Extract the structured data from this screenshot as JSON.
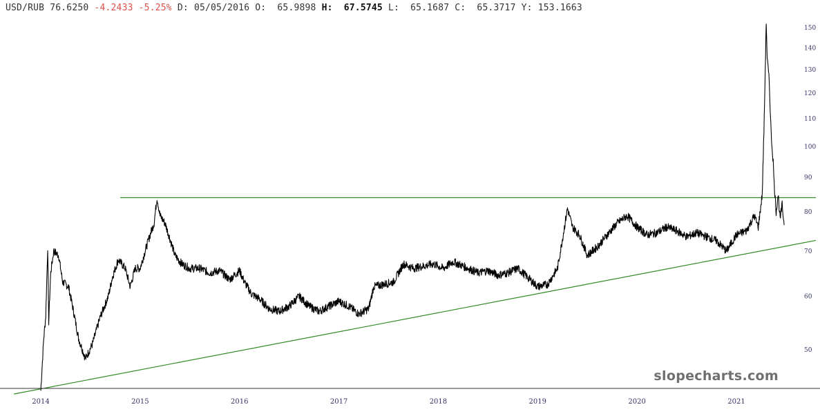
{
  "header": {
    "symbol": "USD/RUB",
    "last": "76.6250",
    "change": "-4.2433",
    "change_pct": "-5.25%",
    "date_label": "D:",
    "date": "05/05/2016",
    "open_label": "O:",
    "open": "65.9898",
    "high_label": "H:",
    "high": "67.5745",
    "low_label": "L:",
    "low": "65.1687",
    "close_label": "C:",
    "close": "65.3717",
    "y_label": "Y:",
    "y_value": "153.1663"
  },
  "watermark": "slopecharts.com",
  "colors": {
    "price": "#000000",
    "trendline": "#2f8a22",
    "negative": "#e0504a",
    "axis_text": "#333366",
    "watermark": "#6f6f6f"
  },
  "chart_data": {
    "type": "line",
    "scale": "log",
    "ylim": [
      43,
      153
    ],
    "xlim": [
      2013.9,
      2021.8
    ],
    "y_ticks": [
      50,
      60,
      70,
      80,
      90,
      100,
      110,
      120,
      130,
      140,
      150
    ],
    "x_ticks": [
      {
        "label": "2014",
        "x": 2014.0
      },
      {
        "label": "2015",
        "x": 2015.0
      },
      {
        "label": "2016",
        "x": 2016.0
      },
      {
        "label": "2017",
        "x": 2017.0
      },
      {
        "label": "2018",
        "x": 2018.0
      },
      {
        "label": "2019",
        "x": 2019.0
      },
      {
        "label": "2020",
        "x": 2020.0
      },
      {
        "label": "2021",
        "x": 2021.0
      }
    ],
    "series": [
      {
        "points": [
          [
            2014.0,
            43.5
          ],
          [
            2014.03,
            52
          ],
          [
            2014.05,
            56
          ],
          [
            2014.07,
            71
          ],
          [
            2014.08,
            55
          ],
          [
            2014.1,
            65
          ],
          [
            2014.13,
            70
          ],
          [
            2014.18,
            69
          ],
          [
            2014.22,
            63
          ],
          [
            2014.28,
            62
          ],
          [
            2014.33,
            57
          ],
          [
            2014.38,
            52
          ],
          [
            2014.45,
            48.5
          ],
          [
            2014.52,
            51
          ],
          [
            2014.6,
            56
          ],
          [
            2014.68,
            60
          ],
          [
            2014.72,
            64
          ],
          [
            2014.78,
            68
          ],
          [
            2014.85,
            66
          ],
          [
            2014.9,
            62
          ],
          [
            2014.95,
            66
          ],
          [
            2015.0,
            66
          ],
          [
            2015.05,
            70
          ],
          [
            2015.1,
            74
          ],
          [
            2015.14,
            77
          ],
          [
            2015.17,
            84
          ],
          [
            2015.2,
            79
          ],
          [
            2015.25,
            77
          ],
          [
            2015.3,
            73
          ],
          [
            2015.35,
            69
          ],
          [
            2015.42,
            67
          ],
          [
            2015.5,
            66
          ],
          [
            2015.6,
            66
          ],
          [
            2015.7,
            65
          ],
          [
            2015.8,
            65.5
          ],
          [
            2015.9,
            63.5
          ],
          [
            2016.0,
            65.5
          ],
          [
            2016.05,
            63
          ],
          [
            2016.12,
            60.5
          ],
          [
            2016.2,
            59.5
          ],
          [
            2016.3,
            57.5
          ],
          [
            2016.4,
            57
          ],
          [
            2016.5,
            58
          ],
          [
            2016.6,
            60
          ],
          [
            2016.7,
            58
          ],
          [
            2016.8,
            57
          ],
          [
            2016.9,
            58
          ],
          [
            2017.0,
            59
          ],
          [
            2017.1,
            58
          ],
          [
            2017.2,
            56.5
          ],
          [
            2017.3,
            57.5
          ],
          [
            2017.35,
            62
          ],
          [
            2017.45,
            62.5
          ],
          [
            2017.55,
            63
          ],
          [
            2017.65,
            67
          ],
          [
            2017.75,
            66
          ],
          [
            2017.85,
            66.5
          ],
          [
            2017.95,
            67
          ],
          [
            2018.05,
            66
          ],
          [
            2018.15,
            67.5
          ],
          [
            2018.3,
            66
          ],
          [
            2018.4,
            65
          ],
          [
            2018.5,
            65.5
          ],
          [
            2018.6,
            64.5
          ],
          [
            2018.7,
            65
          ],
          [
            2018.8,
            66
          ],
          [
            2018.9,
            64
          ],
          [
            2019.0,
            62
          ],
          [
            2019.1,
            62.5
          ],
          [
            2019.2,
            66
          ],
          [
            2019.25,
            73
          ],
          [
            2019.3,
            81
          ],
          [
            2019.35,
            76
          ],
          [
            2019.42,
            74
          ],
          [
            2019.5,
            69
          ],
          [
            2019.6,
            71
          ],
          [
            2019.7,
            74
          ],
          [
            2019.8,
            77
          ],
          [
            2019.9,
            79
          ],
          [
            2020.0,
            76
          ],
          [
            2020.1,
            74
          ],
          [
            2020.2,
            74.5
          ],
          [
            2020.3,
            76
          ],
          [
            2020.4,
            75
          ],
          [
            2020.5,
            73.5
          ],
          [
            2020.6,
            74.5
          ],
          [
            2020.7,
            73.5
          ],
          [
            2020.8,
            72.5
          ],
          [
            2020.9,
            70
          ],
          [
            2021.0,
            74
          ],
          [
            2021.1,
            75
          ],
          [
            2021.18,
            79
          ],
          [
            2021.22,
            76
          ],
          [
            2021.26,
            85
          ],
          [
            2021.28,
            110
          ],
          [
            2021.3,
            153
          ],
          [
            2021.31,
            135
          ],
          [
            2021.33,
            125
          ],
          [
            2021.35,
            104
          ],
          [
            2021.37,
            95
          ],
          [
            2021.38,
            88
          ],
          [
            2021.4,
            80
          ],
          [
            2021.42,
            85
          ],
          [
            2021.44,
            78
          ],
          [
            2021.46,
            82
          ],
          [
            2021.48,
            76.5
          ]
        ]
      }
    ],
    "trendlines": [
      {
        "kind": "horizontal",
        "y": 84,
        "x_start": 2014.8,
        "x_end": 2021.8
      },
      {
        "kind": "rising",
        "from": [
          2013.73,
          43
        ],
        "to": [
          2021.8,
          72.6
        ]
      }
    ]
  }
}
